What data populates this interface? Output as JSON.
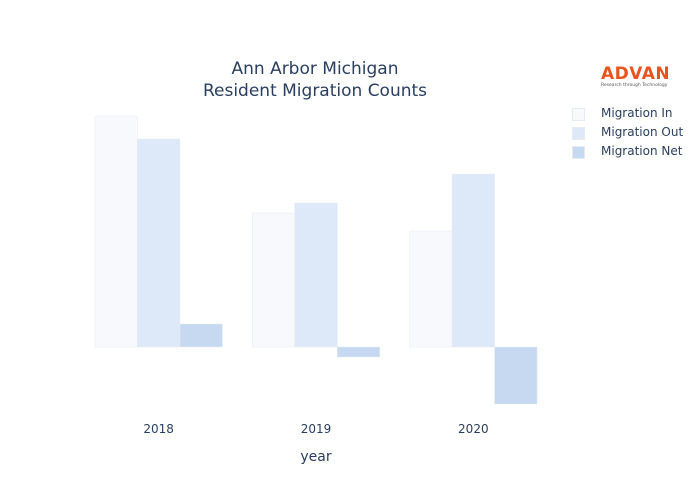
{
  "title": {
    "line1": "Ann Arbor Michigan",
    "line2": "Resident Migration Counts"
  },
  "logo": {
    "word": "ADVAN",
    "tagline": "Research through Technology"
  },
  "colors": {
    "migration_in": "#f7f9fd",
    "migration_out": "#dde8f8",
    "migration_net": "#c6d9f1",
    "border": "#e6ebf3"
  },
  "chart_data": {
    "type": "bar",
    "title": "Ann Arbor Michigan Resident Migration Counts",
    "xlabel": "year",
    "ylabel": "",
    "categories": [
      "2018",
      "2019",
      "2020"
    ],
    "series": [
      {
        "name": "Migration In",
        "values": [
          231,
          134,
          116
        ]
      },
      {
        "name": "Migration Out",
        "values": [
          208,
          144,
          173
        ]
      },
      {
        "name": "Migration Net",
        "values": [
          23,
          -10,
          -57
        ]
      }
    ],
    "ylim": [
      -70,
      245
    ],
    "grid": false,
    "y_ticks_visible": false,
    "legend_position": "top-right"
  }
}
